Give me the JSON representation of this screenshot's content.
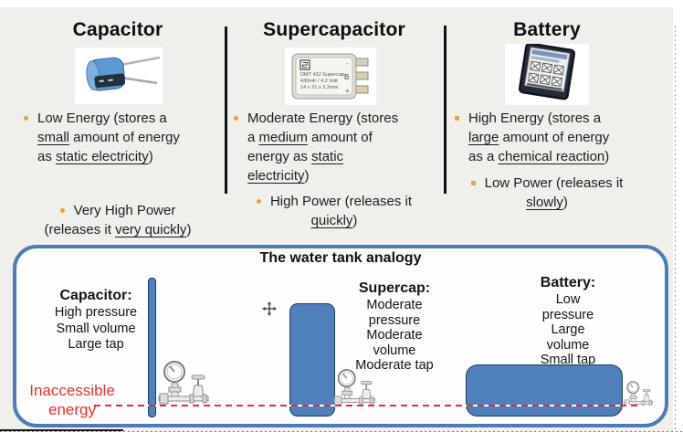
{
  "colors": {
    "blue": "#4e80bc",
    "tank-border": "#1d3d63",
    "box-border": "#4c7db8",
    "red": "#e8302a",
    "orange": "#e9a13b",
    "bg": "#f1efec",
    "ink": "#1c1c1c"
  },
  "columns": [
    {
      "heading": "Capacitor",
      "bullet1": [
        [
          "Low Energy (stores a\n",
          0
        ],
        [
          "small",
          1
        ],
        [
          " amount of energy\nas ",
          0
        ],
        [
          "static electricity",
          1
        ],
        [
          ")",
          0
        ]
      ],
      "bullet2": [
        [
          "Very High Power\n(releases it ",
          0
        ],
        [
          "very quickly",
          1
        ],
        [
          ")",
          0
        ]
      ]
    },
    {
      "heading": "Supercapacitor",
      "bullet1": [
        [
          "Moderate Energy (stores\na ",
          0
        ],
        [
          "medium",
          1
        ],
        [
          " amount of\nenergy as ",
          0
        ],
        [
          "static",
          1
        ],
        [
          "\n",
          0
        ],
        [
          "electricity",
          1
        ],
        [
          ")",
          0
        ]
      ],
      "bullet2": [
        [
          "High Power (releases it\n",
          0
        ],
        [
          "quickly",
          1
        ],
        [
          ")",
          0
        ]
      ]
    },
    {
      "heading": "Battery",
      "bullet1": [
        [
          "High Energy (stores a\n",
          0
        ],
        [
          "large",
          1
        ],
        [
          " amount of energy\nas a ",
          0
        ],
        [
          "chemical reaction",
          1
        ],
        [
          ")",
          0
        ]
      ],
      "bullet2": [
        [
          "Low Power (releases it\n",
          0
        ],
        [
          "slowly",
          1
        ],
        [
          ")",
          0
        ]
      ]
    }
  ],
  "devices": {
    "supercap_label": {
      "line1": "DMT 43J Supercap",
      "line2": "430mF / 4.2 Volt",
      "line3": "14 x 21 x 3.2mm",
      "terminal_minus": "-",
      "terminal_b": "B",
      "terminal_plus": "+"
    }
  },
  "water_tank_box": {
    "title": "The water tank analogy",
    "capacitor": {
      "heading": "Capacitor:",
      "lines": [
        "High pressure",
        "Small volume",
        "Large tap"
      ]
    },
    "supercap": {
      "heading": "Supercap:",
      "lines": [
        "Moderate",
        "pressure",
        "Moderate",
        "volume",
        "Moderate tap"
      ]
    },
    "battery": {
      "heading": "Battery:",
      "lines": [
        "Low",
        "pressure",
        "Large",
        "volume",
        "Small tap"
      ]
    },
    "inaccessible_label": {
      "line1": "Inaccessible",
      "line2": "energy"
    }
  }
}
